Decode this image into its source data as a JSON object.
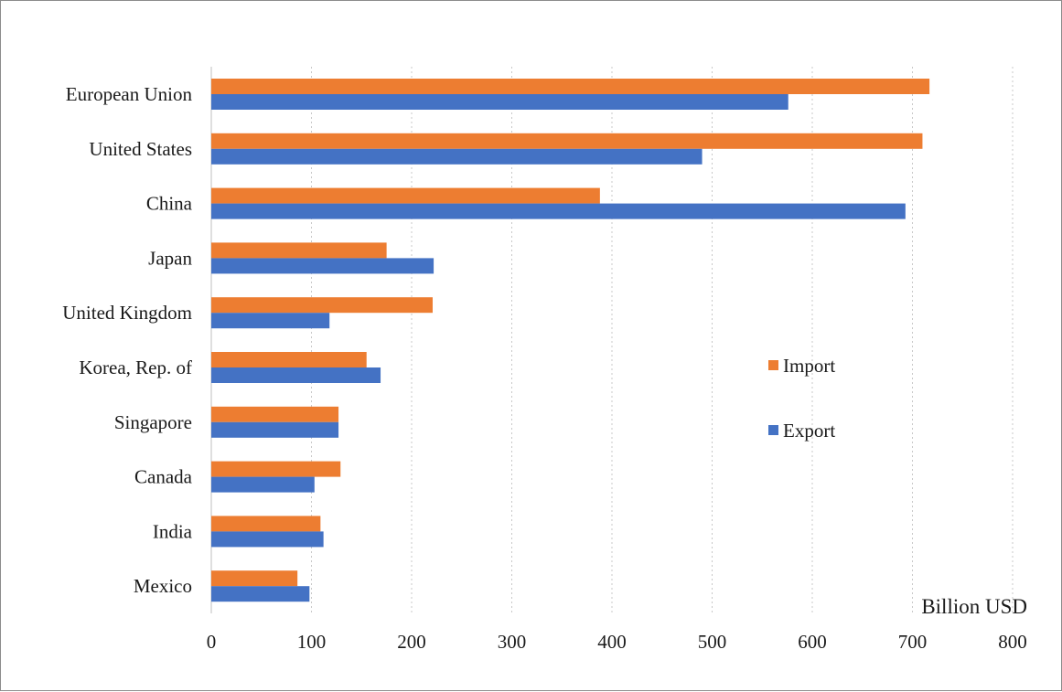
{
  "chart_data": {
    "type": "bar",
    "orientation": "horizontal",
    "categories": [
      "European Union",
      "United States",
      "China",
      "Japan",
      "United Kingdom",
      "Korea, Rep. of",
      "Singapore",
      "Canada",
      "India",
      "Mexico"
    ],
    "series": [
      {
        "name": "Import",
        "color": "#ED7D31",
        "values": [
          717,
          710,
          388,
          175,
          221,
          155,
          127,
          129,
          109,
          86
        ]
      },
      {
        "name": "Export",
        "color": "#4472C4",
        "values": [
          576,
          490,
          693,
          222,
          118,
          169,
          127,
          103,
          112,
          98
        ]
      }
    ],
    "xlim": [
      0,
      800
    ],
    "xticks": [
      0,
      100,
      200,
      300,
      400,
      500,
      600,
      700,
      800
    ],
    "unit_label": "Billion USD",
    "grid": "vertical-dotted",
    "legend_position": "right"
  }
}
